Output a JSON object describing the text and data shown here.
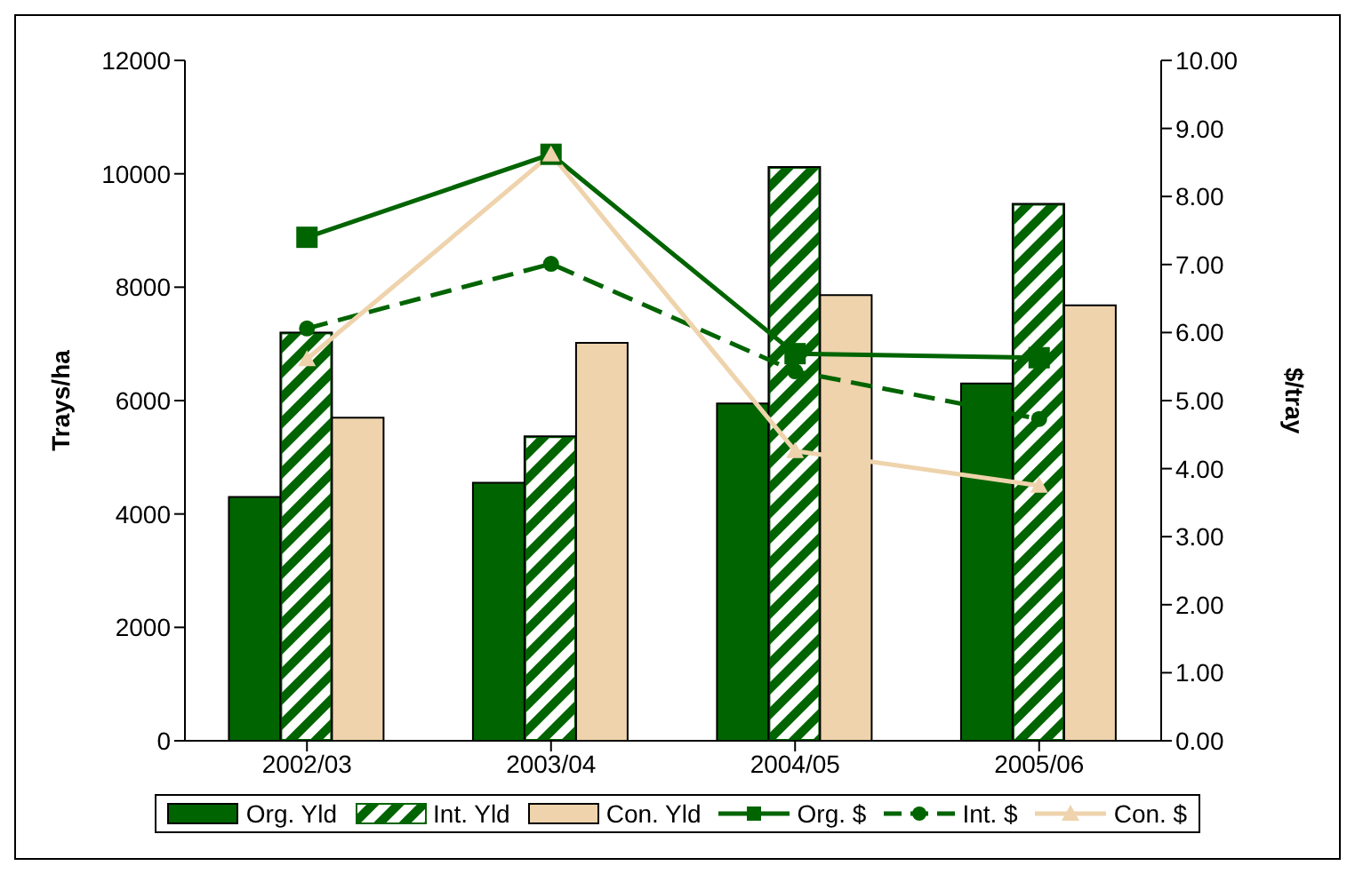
{
  "chart_data": {
    "type": "bar",
    "categories": [
      "2002/03",
      "2003/04",
      "2004/05",
      "2005/06"
    ],
    "ylabel": "Trays/ha",
    "y2label": "$/tray",
    "ylim": [
      0,
      12000
    ],
    "yticks": [
      0,
      2000,
      4000,
      6000,
      8000,
      10000,
      12000
    ],
    "y2lim": [
      0,
      10
    ],
    "y2ticks": [
      {
        "value": 0,
        "label": "0.00"
      },
      {
        "value": 1,
        "label": "1.00"
      },
      {
        "value": 2,
        "label": "2.00"
      },
      {
        "value": 3,
        "label": "3.00"
      },
      {
        "value": 4,
        "label": "4.00"
      },
      {
        "value": 5,
        "label": "5.00"
      },
      {
        "value": 6,
        "label": "6.00"
      },
      {
        "value": 7,
        "label": "7.00"
      },
      {
        "value": 8,
        "label": "8.00"
      },
      {
        "value": 9,
        "label": "9.00"
      },
      {
        "value": 10,
        "label": "10.00"
      }
    ],
    "legend": "bottom",
    "grid": false,
    "series": [
      {
        "name": "Org. Yld",
        "color": "#006400",
        "values": [
          4300,
          4550,
          5950,
          6300
        ]
      },
      {
        "name": "Int. Yld",
        "color": "#006400",
        "values": [
          7200,
          5370,
          10120,
          9470
        ]
      },
      {
        "name": "Con. Yld",
        "color": "#eed3ac",
        "values": [
          5700,
          7020,
          7860,
          7680
        ]
      },
      {
        "name": "Org. $",
        "type": "line",
        "axis": "y2",
        "color": "#006400",
        "marker": "square",
        "line_style": "solid",
        "values": [
          7.4,
          8.62,
          5.69,
          5.63
        ]
      },
      {
        "name": "Int. $",
        "type": "line",
        "axis": "y2",
        "color": "#006400",
        "marker": "circle",
        "line_style": "dashed",
        "values": [
          6.06,
          7.01,
          5.43,
          4.73
        ]
      },
      {
        "name": "Con. $",
        "type": "line",
        "axis": "y2",
        "color": "#eed3ac",
        "marker": "triangle",
        "line_style": "solid",
        "values": [
          5.61,
          8.62,
          4.26,
          3.75
        ]
      }
    ]
  }
}
